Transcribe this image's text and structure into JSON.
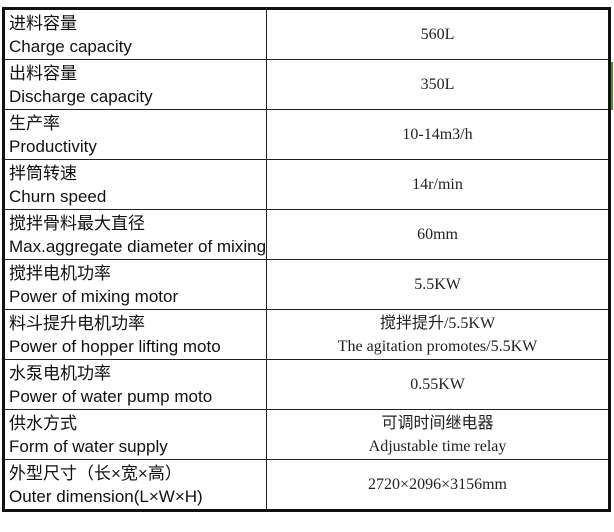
{
  "rows": [
    {
      "zh": "进料容量",
      "en": "Charge capacity",
      "value": "560L",
      "value2": ""
    },
    {
      "zh": "出料容量",
      "en": "Discharge capacity",
      "value": "350L",
      "value2": ""
    },
    {
      "zh": "生产率",
      "en": "Productivity",
      "value": "10-14m3/h",
      "value2": ""
    },
    {
      "zh": "拌筒转速",
      "en": "Churn speed",
      "value": "14r/min",
      "value2": ""
    },
    {
      "zh": "搅拌骨料最大直径",
      "en": "Max.aggregate diameter of mixing",
      "value": "60mm",
      "value2": ""
    },
    {
      "zh": "搅拌电机功率",
      "en": "Power of mixing motor",
      "value": "5.5KW",
      "value2": ""
    },
    {
      "zh": "料斗提升电机功率",
      "en": "Power of hopper lifting moto",
      "value": "搅拌提升/5.5KW",
      "value2": "The agitation promotes/5.5KW"
    },
    {
      "zh": "水泵电机功率",
      "en": "Power of water pump moto",
      "value": "0.55KW",
      "value2": ""
    },
    {
      "zh": "供水方式",
      "en": "Form of water supply",
      "value": "可调时间继电器",
      "value2": "Adjustable time relay"
    },
    {
      "zh": "外型尺寸（长×宽×高）",
      "en": "Outer dimension(L×W×H)",
      "value": "2720×2096×3156mm",
      "value2": ""
    }
  ]
}
